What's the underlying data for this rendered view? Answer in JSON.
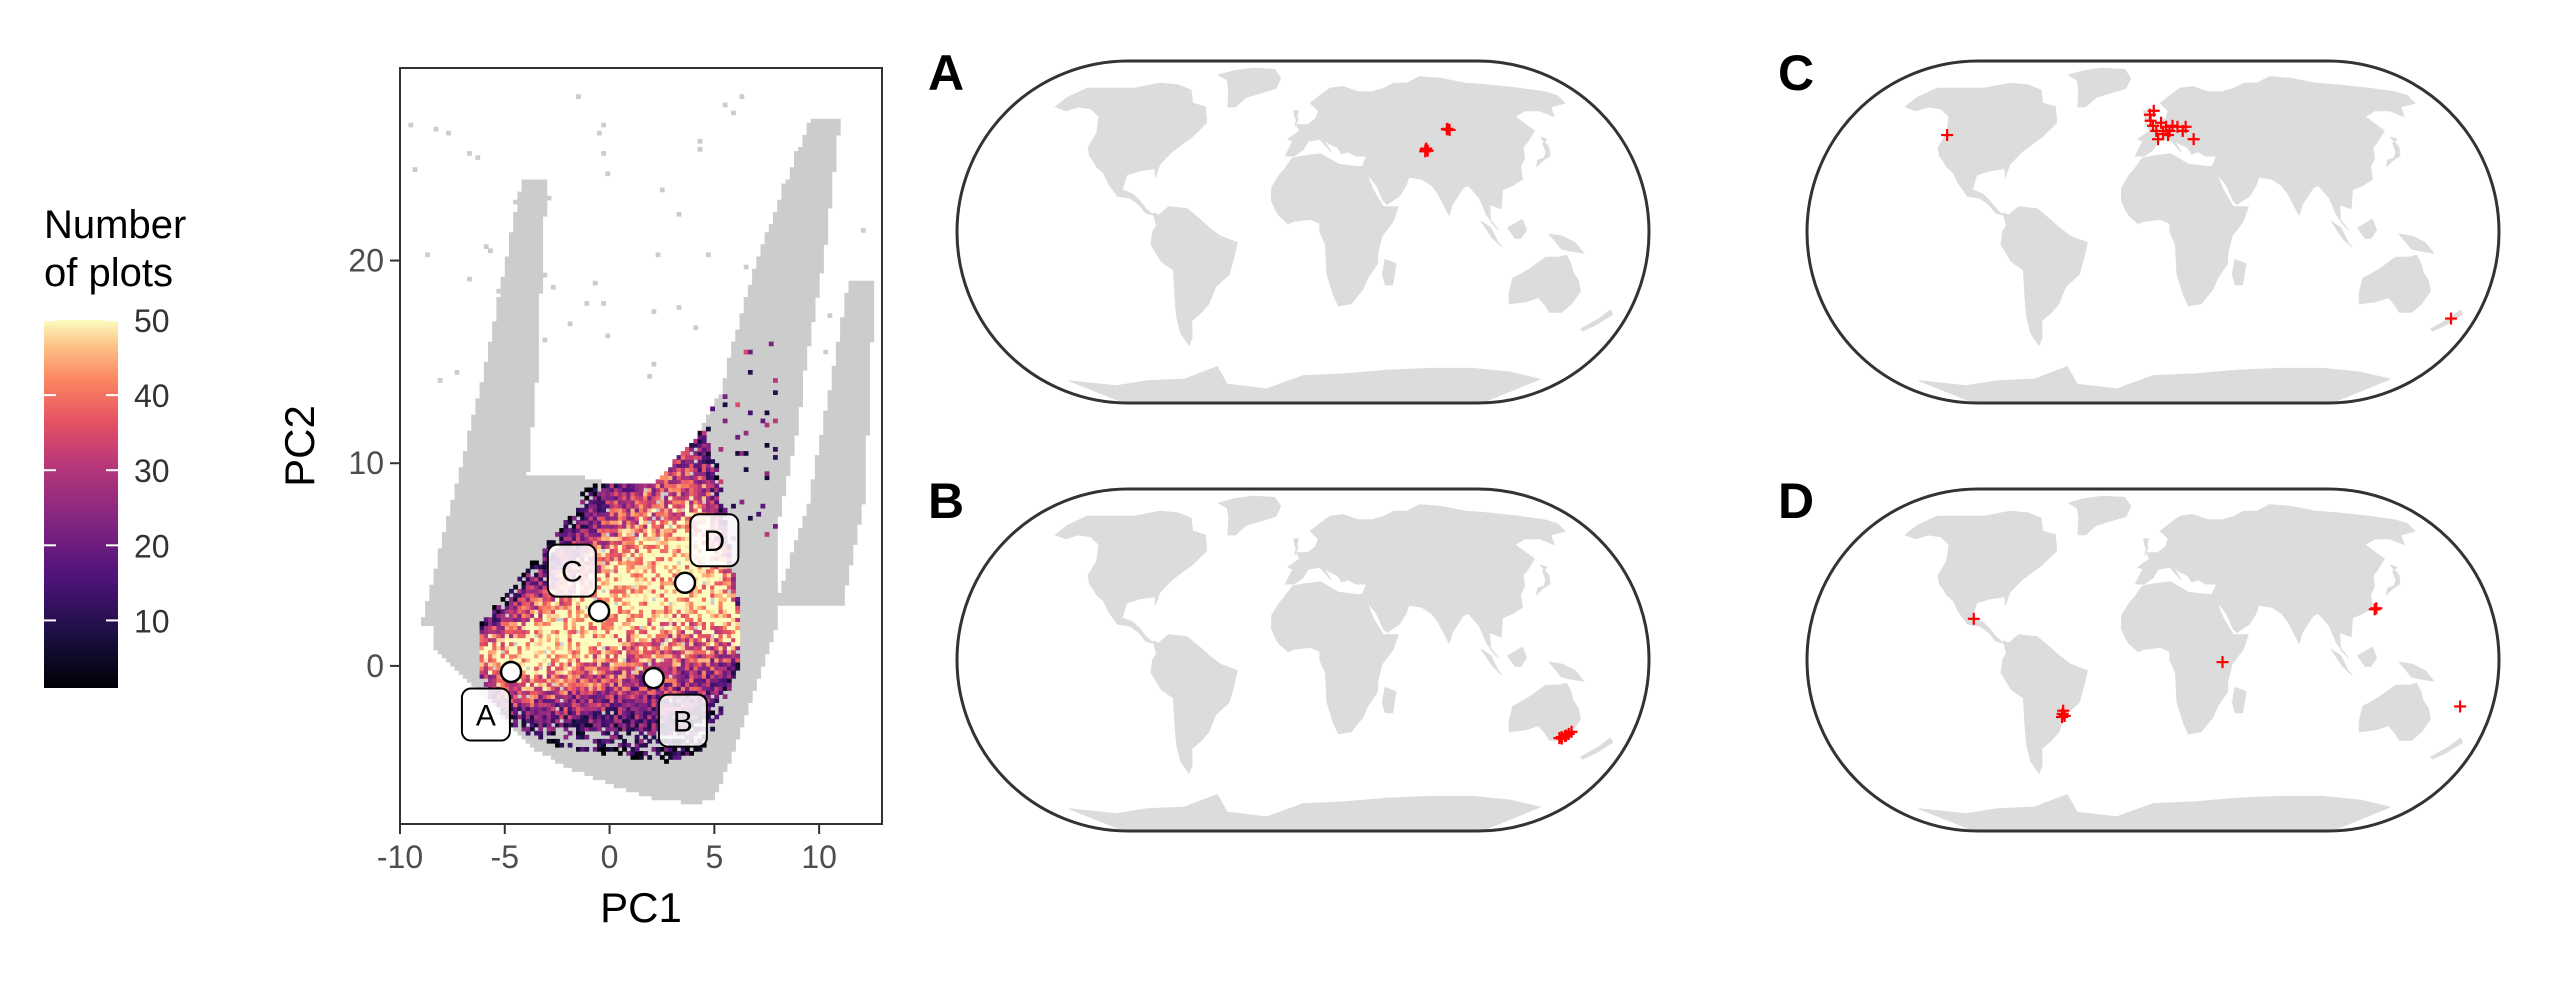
{
  "chart_data": [
    {
      "type": "heatmap",
      "panel": "pca-density",
      "xlabel": "PC1",
      "ylabel": "PC2",
      "xlim": [
        -10,
        13
      ],
      "ylim": [
        -7.8,
        29.5
      ],
      "xticks": [
        -10,
        -5,
        0,
        5,
        10
      ],
      "yticks": [
        0,
        10,
        20
      ],
      "legend": {
        "title_line1": "Number",
        "title_line2": "of plots",
        "range": [
          1,
          50
        ],
        "ticks": [
          10,
          20,
          30,
          40,
          50
        ],
        "placement": "left",
        "palette": "magma"
      },
      "background_color": "#cccccc",
      "points": [
        {
          "label": "A",
          "x": -4.7,
          "y": -0.3,
          "label_x": -5.9,
          "label_y": -2.4
        },
        {
          "label": "B",
          "x": 2.1,
          "y": -0.6,
          "label_x": 3.5,
          "label_y": -2.7
        },
        {
          "label": "C",
          "x": -0.5,
          "y": 2.7,
          "label_x": -1.8,
          "label_y": 4.7
        },
        {
          "label": "D",
          "x": 3.6,
          "y": 4.1,
          "label_x": 5.0,
          "label_y": 6.2
        }
      ]
    },
    {
      "type": "map",
      "panel": "A",
      "label": "A",
      "marker_color": "#ff0000",
      "locations": [
        {
          "lon": 88.0,
          "lat": 49.0
        },
        {
          "lon": 89.0,
          "lat": 48.5
        },
        {
          "lon": 87.5,
          "lat": 48.8
        },
        {
          "lon": 70.5,
          "lat": 39.0
        },
        {
          "lon": 71.5,
          "lat": 38.5
        },
        {
          "lon": 70.0,
          "lat": 38.2
        },
        {
          "lon": 71.0,
          "lat": 39.5
        }
      ]
    },
    {
      "type": "map",
      "panel": "B",
      "label": "B",
      "marker_color": "#ff0000",
      "locations": [
        {
          "lon": 147.0,
          "lat": -36.5
        },
        {
          "lon": 148.5,
          "lat": -36.0
        },
        {
          "lon": 150.0,
          "lat": -35.0
        },
        {
          "lon": 146.0,
          "lat": -37.0
        },
        {
          "lon": 149.0,
          "lat": -35.8
        },
        {
          "lon": 151.0,
          "lat": -34.0
        },
        {
          "lon": 147.5,
          "lat": -37.2
        }
      ]
    },
    {
      "type": "map",
      "panel": "C",
      "label": "C",
      "marker_color": "#ff0000",
      "locations": [
        {
          "lon": -123.0,
          "lat": 46.0
        },
        {
          "lon": -2.0,
          "lat": 56.0
        },
        {
          "lon": -1.5,
          "lat": 53.0
        },
        {
          "lon": 0.0,
          "lat": 50.5
        },
        {
          "lon": 2.0,
          "lat": 48.0
        },
        {
          "lon": 5.0,
          "lat": 52.0
        },
        {
          "lon": 8.0,
          "lat": 50.0
        },
        {
          "lon": 10.0,
          "lat": 48.0
        },
        {
          "lon": 12.0,
          "lat": 50.5
        },
        {
          "lon": 15.0,
          "lat": 50.0
        },
        {
          "lon": 6.0,
          "lat": 46.5
        },
        {
          "lon": 9.0,
          "lat": 46.0
        },
        {
          "lon": 3.0,
          "lat": 44.0
        },
        {
          "lon": 18.0,
          "lat": 48.0
        },
        {
          "lon": 20.0,
          "lat": 50.0
        },
        {
          "lon": 24.0,
          "lat": 44.0
        },
        {
          "lon": 0.5,
          "lat": 58.0
        },
        {
          "lon": 173.0,
          "lat": -41.0
        }
      ]
    },
    {
      "type": "map",
      "panel": "D",
      "label": "D",
      "marker_color": "#ff0000",
      "locations": [
        {
          "lon": -97.0,
          "lat": 19.5
        },
        {
          "lon": -49.0,
          "lat": -24.0
        },
        {
          "lon": -49.5,
          "lat": -25.5
        },
        {
          "lon": -48.5,
          "lat": -26.5
        },
        {
          "lon": -50.0,
          "lat": -27.0
        },
        {
          "lon": 37.0,
          "lat": -1.0
        },
        {
          "lon": 121.0,
          "lat": 24.0
        },
        {
          "lon": 122.0,
          "lat": 24.5
        },
        {
          "lon": 167.0,
          "lat": -22.0
        }
      ]
    }
  ]
}
